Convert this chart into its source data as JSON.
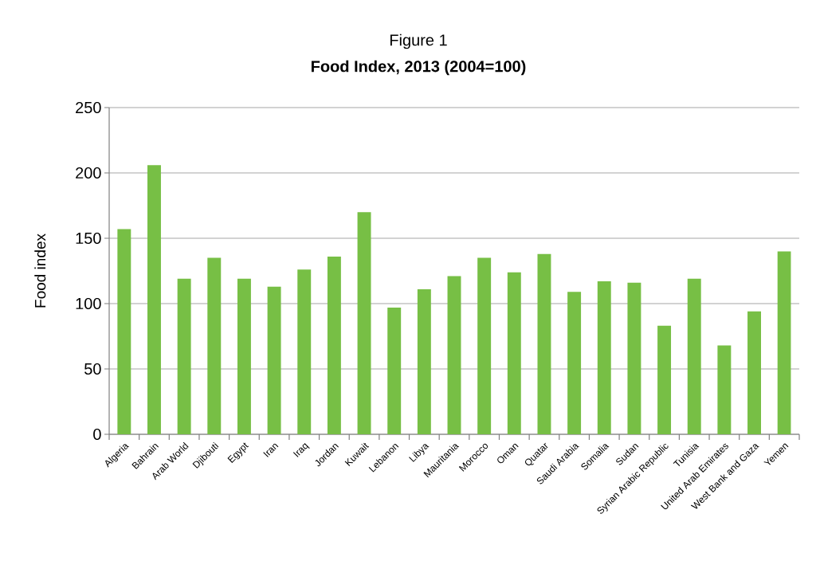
{
  "chart_data": {
    "type": "bar",
    "title": "Figure 1",
    "subtitle": "**Food Index, 2013 (2004=100)**",
    "ylabel": "Food index",
    "categories": [
      "Algeria",
      "Bahrain",
      "Arab World",
      "Djibouti",
      "Egypt",
      "Iran",
      "Iraq",
      "Jordan",
      "Kuwait",
      "Lebanon",
      "Libya",
      "Mauritania",
      "Morocco",
      "Oman",
      "Quatar",
      "Saudi Arabia",
      "Somalia",
      "Sudan",
      "Syrian Arabic Republic",
      "Tunisia",
      "United Arab Emirates",
      "West Bank and Gaza",
      "Yemen"
    ],
    "values": [
      157,
      206,
      119,
      135,
      119,
      113,
      126,
      136,
      170,
      97,
      111,
      121,
      135,
      124,
      138,
      109,
      117,
      116,
      83,
      119,
      68,
      94,
      140
    ],
    "color": "#77bf45",
    "ylim": [
      0,
      250
    ],
    "yticks": [
      0,
      50,
      100,
      150,
      200,
      250
    ],
    "grid": "y"
  }
}
